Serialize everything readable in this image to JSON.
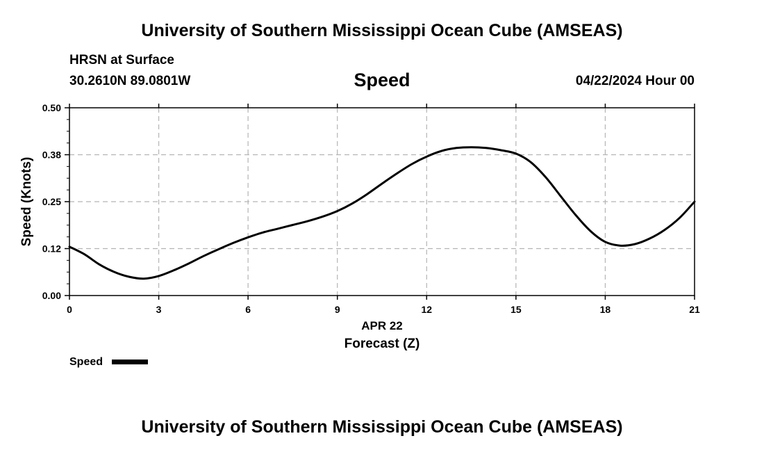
{
  "header": {
    "title": "University of Southern Mississippi Ocean Cube (AMSEAS)",
    "location": "HRSN at Surface",
    "coords": "30.2610N  89.0801W",
    "plot_title": "Speed",
    "datetime": "04/22/2024 Hour 00"
  },
  "footer": {
    "title": "University of Southern Mississippi Ocean Cube (AMSEAS)"
  },
  "legend": {
    "label": "Speed",
    "color": "#000000"
  },
  "chart_data": {
    "type": "line",
    "title": "Speed",
    "xlabel": "Forecast (Z)",
    "xlabel_date": "APR 22",
    "ylabel": "Speed (Knots)",
    "xlim": [
      0,
      21
    ],
    "ylim": [
      0,
      0.5
    ],
    "grid": true,
    "legend_position": "bottom-left",
    "x_ticks": [
      0,
      3,
      6,
      9,
      12,
      15,
      18,
      21
    ],
    "x_tick_labels": [
      "0",
      "3",
      "6",
      "9",
      "12",
      "15",
      "18",
      "21"
    ],
    "y_ticks": [
      0,
      0.125,
      0.25,
      0.375,
      0.5
    ],
    "y_tick_labels": [
      "0.00",
      "0.12",
      "0.25",
      "0.38",
      "0.50"
    ],
    "series": [
      {
        "name": "Speed",
        "color": "#000000",
        "x": [
          0,
          0.5,
          1,
          1.5,
          2,
          2.5,
          3,
          3.5,
          4,
          4.5,
          5,
          5.5,
          6,
          6.5,
          7,
          7.5,
          8,
          8.5,
          9,
          9.5,
          10,
          10.5,
          11,
          11.5,
          12,
          12.5,
          13,
          13.5,
          14,
          14.5,
          15,
          15.5,
          16,
          16.5,
          17,
          17.5,
          18,
          18.5,
          19,
          19.5,
          20,
          20.5,
          21
        ],
        "y": [
          0.13,
          0.11,
          0.083,
          0.063,
          0.05,
          0.045,
          0.052,
          0.067,
          0.085,
          0.105,
          0.123,
          0.14,
          0.155,
          0.168,
          0.178,
          0.188,
          0.198,
          0.21,
          0.225,
          0.245,
          0.27,
          0.298,
          0.325,
          0.35,
          0.37,
          0.385,
          0.393,
          0.395,
          0.393,
          0.387,
          0.378,
          0.355,
          0.315,
          0.265,
          0.215,
          0.172,
          0.143,
          0.133,
          0.137,
          0.152,
          0.175,
          0.207,
          0.25
        ]
      }
    ]
  }
}
